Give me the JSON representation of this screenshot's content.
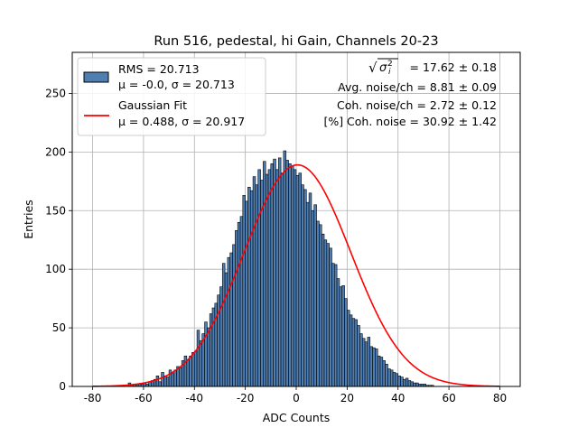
{
  "chart_data": {
    "type": "bar",
    "title": "Run 516, pedestal, hi Gain, Channels 20-23",
    "xlabel": "ADC Counts",
    "ylabel": "Entries",
    "xlim": [
      -88,
      88
    ],
    "ylim": [
      0,
      285
    ],
    "xticks": [
      "-80",
      "-60",
      "-40",
      "-20",
      "0",
      "20",
      "40",
      "60",
      "80"
    ],
    "xtick_values": [
      -80,
      -60,
      -40,
      -20,
      0,
      20,
      40,
      60,
      80
    ],
    "yticks": [
      "0",
      "50",
      "100",
      "150",
      "200",
      "250"
    ],
    "ytick_values": [
      0,
      50,
      100,
      150,
      200,
      250
    ],
    "grid": true,
    "legend_position": "upper left",
    "colors": {
      "bars": "#4f7eb3",
      "bar_edge": "#000000",
      "fit": "#ff0000",
      "grid": "#b0b0b0"
    },
    "histogram": {
      "name_lines": [
        "RMS = 20.713",
        "μ = -0.0, σ = 20.713"
      ],
      "bin_start": -66,
      "bin_width": 1,
      "counts": [
        3,
        1,
        2,
        1,
        2,
        2,
        3,
        2,
        4,
        5,
        6,
        9,
        4,
        12,
        9,
        8,
        14,
        11,
        14,
        17,
        16,
        22,
        26,
        23,
        26,
        29,
        30,
        48,
        39,
        45,
        55,
        50,
        62,
        67,
        71,
        78,
        85,
        105,
        97,
        110,
        114,
        121,
        133,
        140,
        145,
        163,
        158,
        170,
        167,
        179,
        172,
        185,
        176,
        192,
        181,
        185,
        190,
        194,
        185,
        195,
        182,
        201,
        193,
        190,
        188,
        185,
        180,
        182,
        172,
        168,
        157,
        165,
        150,
        155,
        141,
        138,
        130,
        125,
        122,
        118,
        105,
        104,
        92,
        85,
        86,
        75,
        65,
        61,
        58,
        57,
        52,
        45,
        41,
        38,
        42,
        34,
        33,
        32,
        26,
        25,
        22,
        19,
        15,
        14,
        12,
        11,
        9,
        8,
        6,
        7,
        5,
        4,
        3,
        3,
        2,
        2,
        2,
        1,
        1,
        1
      ]
    },
    "gaussian_fit": {
      "name_lines": [
        "Gaussian Fit",
        "μ = 0.488, σ = 20.917"
      ],
      "mu": 0.488,
      "sigma": 20.917,
      "amplitude": 189,
      "x_range": [
        -80,
        80
      ]
    },
    "annotations": [
      {
        "id": "sigma-total",
        "sqrt_symbol": "√",
        "sigma_letter": "σ",
        "sub": "i",
        "sup": "2",
        "value_text": "= 17.62 ± 0.18"
      },
      {
        "id": "avg-noise",
        "text": "Avg. noise/ch = 8.81 ± 0.09"
      },
      {
        "id": "coh-noise",
        "text": "Coh. noise/ch = 2.72 ± 0.12"
      },
      {
        "id": "coh-noise-pct",
        "text": "[%] Coh. noise = 30.92 ± 1.42"
      }
    ]
  }
}
